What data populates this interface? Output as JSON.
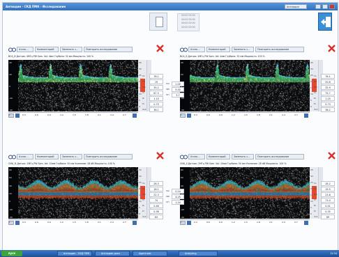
{
  "window": {
    "title": "Ангиодин - СКД ПМК - Исследование",
    "selector": "Ангиодин",
    "time_lines": [
      "00:00 00:00",
      "00:00 00:00",
      "00:00 00:00",
      "00:00 00:00"
    ]
  },
  "panels": [
    {
      "id": "BCA_D",
      "buttons": [
        "Атлас...",
        "Комментарий",
        "Заменить с...",
        "Повторить исследование"
      ],
      "info": "ВСА_D  Датчик: 4МГц PW  Sam. Vol: 4мм  Глубина: 32 мм  Мощность: 100 %",
      "y_ticks": [
        "40",
        "20",
        "0",
        "-20",
        "-40"
      ],
      "right_ticks": [
        "35",
        "30",
        "25",
        "20",
        "15",
        "10",
        "5",
        "0"
      ],
      "x_ticks": [
        "0.3",
        "0.6",
        "0.9",
        "1.2",
        "1.5",
        "1.8",
        "2.1",
        "2.4",
        "2.7"
      ],
      "readings": [
        {
          "label": "Vs",
          "value": "76.1"
        },
        {
          "label": "Vd",
          "value": "19"
        },
        {
          "label": "Vm",
          "value": "35.2"
        },
        {
          "label": "Vr",
          "value": "67.5"
        },
        {
          "label": "Ri",
          "value": "1.15"
        },
        {
          "label": "Pi",
          "value": "0.75"
        },
        {
          "label": "Vs2",
          "value": "36.1"
        }
      ],
      "mid": [
        {
          "label": "ISU",
          "value": "1.00"
        },
        {
          "label": "SBI",
          "value": "5.00"
        },
        {
          "label": "STI",
          "value": "3.7"
        }
      ],
      "pattern": "pulse"
    },
    {
      "id": "BCA_S",
      "buttons": [
        "Атлас...",
        "Комментарий",
        "Заменить с...",
        "Повторить исследование"
      ],
      "info": "ВСА_S  Датчик: 4МГц PW  Sam. Vol: 4мм  Глубина: 32 мм  Мощность: 100 %",
      "y_ticks": [
        "40",
        "20",
        "0",
        "-20",
        "-40"
      ],
      "right_ticks": [
        "35",
        "30",
        "25",
        "20",
        "15",
        "10",
        "5",
        "0"
      ],
      "x_ticks": [
        "0.3",
        "0.6",
        "0.9",
        "1.2",
        "1.5",
        "1.8",
        "2.1",
        "2.4",
        "2.7"
      ],
      "readings": [
        {
          "label": "Vs",
          "value": "76.1"
        },
        {
          "label": "Vd",
          "value": "20.8"
        },
        {
          "label": "Vm",
          "value": "32.9"
        },
        {
          "label": "Vr",
          "value": "75.7"
        },
        {
          "label": "Ri",
          "value": "1.25"
        },
        {
          "label": "Pi",
          "value": "0.73"
        },
        {
          "label": "Vs2",
          "value": "36.2"
        }
      ],
      "pattern": "pulse"
    },
    {
      "id": "СМА_D",
      "buttons": [
        "Атлас...",
        "Комментарий",
        "Заменить с...",
        "Повторить исследование"
      ],
      "info": "СМА_D  Датчик: 2МГц PW  Sam. Vol: 10мм  Глубина: 50 мм  Усиление: 28 dB  Мощность: 100 %",
      "y_ticks": [
        "80",
        "60",
        "40",
        "20",
        "0",
        "-20",
        "-40"
      ],
      "right_ticks": [
        "35",
        "30",
        "25",
        "20",
        "15",
        "10",
        "5",
        "0"
      ],
      "x_ticks": [
        "0.3",
        "0.6",
        "0.9",
        "1.2",
        "1.5",
        "1.8",
        "2.1",
        "2.4",
        "2.7"
      ],
      "readings": [
        {
          "label": "Vs",
          "value": "28.3"
        },
        {
          "label": "Vd",
          "value": "18.1"
        },
        {
          "label": "Vm",
          "value": "22.3"
        },
        {
          "label": "Vr",
          "value": "74"
        },
        {
          "label": "Ri",
          "value": "0.46"
        },
        {
          "label": "Pi",
          "value": "0.36"
        },
        {
          "label": "Vs2",
          "value": "63"
        }
      ],
      "mid": [
        {
          "label": "ISU",
          "value": "0.24"
        },
        {
          "label": "SBI",
          "value": "4.25"
        },
        {
          "label": "STI",
          "value": "1.24"
        }
      ],
      "pattern": "flow"
    },
    {
      "id": "СМА_S",
      "buttons": [
        "Атлас...",
        "Комментарий",
        "Заменить с...",
        "Повторить исследование"
      ],
      "info": "СМА_S  Датчик: 2МГц PW  Sam. Vol: 10мм  Глубина: 50 мм  Усиление: 28 dB  Мощность: 100 %",
      "y_ticks": [
        "80",
        "60",
        "40",
        "20",
        "0",
        "-20",
        "-40"
      ],
      "right_ticks": [
        "35",
        "30",
        "25",
        "20",
        "15",
        "10",
        "5",
        "0"
      ],
      "x_ticks": [
        "0.3",
        "0.6",
        "0.9",
        "1.2",
        "1.5",
        "1.8",
        "2.1",
        "2.4",
        "2.7"
      ],
      "readings": [
        {
          "label": "Vs",
          "value": "28.2"
        },
        {
          "label": "Vd",
          "value": "19.5"
        },
        {
          "label": "Vm",
          "value": "23.8"
        },
        {
          "label": "Vr",
          "value": "73.0"
        },
        {
          "label": "Ri",
          "value": "0.41"
        },
        {
          "label": "Pi",
          "value": "0.35"
        },
        {
          "label": "Vs2",
          "value": "69"
        }
      ],
      "pattern": "flow"
    }
  ],
  "taskbar": {
    "start": "пуск",
    "tasks": [
      "Ангиодин - СКД ПМК",
      "Ангиодин.докл",
      "Agent.stat",
      "Analyzing"
    ],
    "clock": "12:34"
  }
}
